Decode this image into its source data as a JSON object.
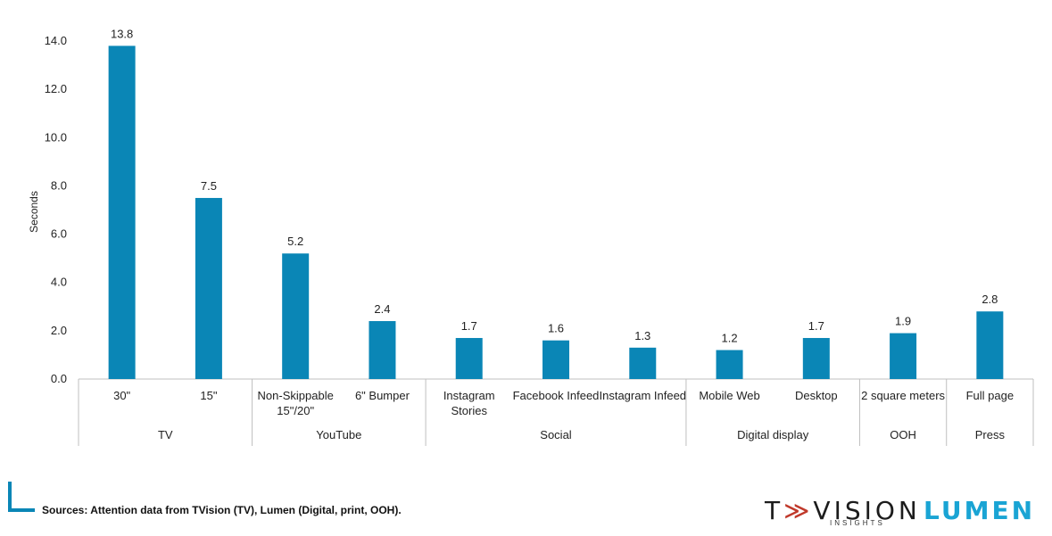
{
  "chart_data": {
    "type": "bar",
    "ylabel": "Seconds",
    "ylim": [
      0,
      14
    ],
    "yticks": [
      "0.0",
      "2.0",
      "4.0",
      "6.0",
      "8.0",
      "10.0",
      "12.0",
      "14.0"
    ],
    "bar_color": "#0a86b6",
    "categories": [
      "30\"",
      "15\"",
      "Non-Skippable 15\"/20\"",
      "6\" Bumper",
      "Instagram Stories",
      "Facebook Infeed",
      "Instagram Infeed",
      "Mobile Web",
      "Desktop",
      "2 square meters",
      "Full page"
    ],
    "values": [
      13.8,
      7.5,
      5.2,
      2.4,
      1.7,
      1.6,
      1.3,
      1.2,
      1.7,
      1.9,
      2.8
    ],
    "value_labels": [
      "13.8",
      "7.5",
      "5.2",
      "2.4",
      "1.7",
      "1.6",
      "1.3",
      "1.2",
      "1.7",
      "1.9",
      "2.8"
    ],
    "groups": [
      {
        "name": "TV",
        "count": 2
      },
      {
        "name": "YouTube",
        "count": 2
      },
      {
        "name": "Social",
        "count": 3
      },
      {
        "name": "Digital display",
        "count": 2
      },
      {
        "name": "OOH",
        "count": 1
      },
      {
        "name": "Press",
        "count": 1
      }
    ],
    "grid": false,
    "legend": "none"
  },
  "footer": {
    "source": "Sources: Attention data from TVision (TV), Lumen (Digital, print, OOH)."
  },
  "logos": {
    "tvision": "TVISION",
    "tvision_sub": "INSIGHTS",
    "lumen": "LUMEN"
  }
}
